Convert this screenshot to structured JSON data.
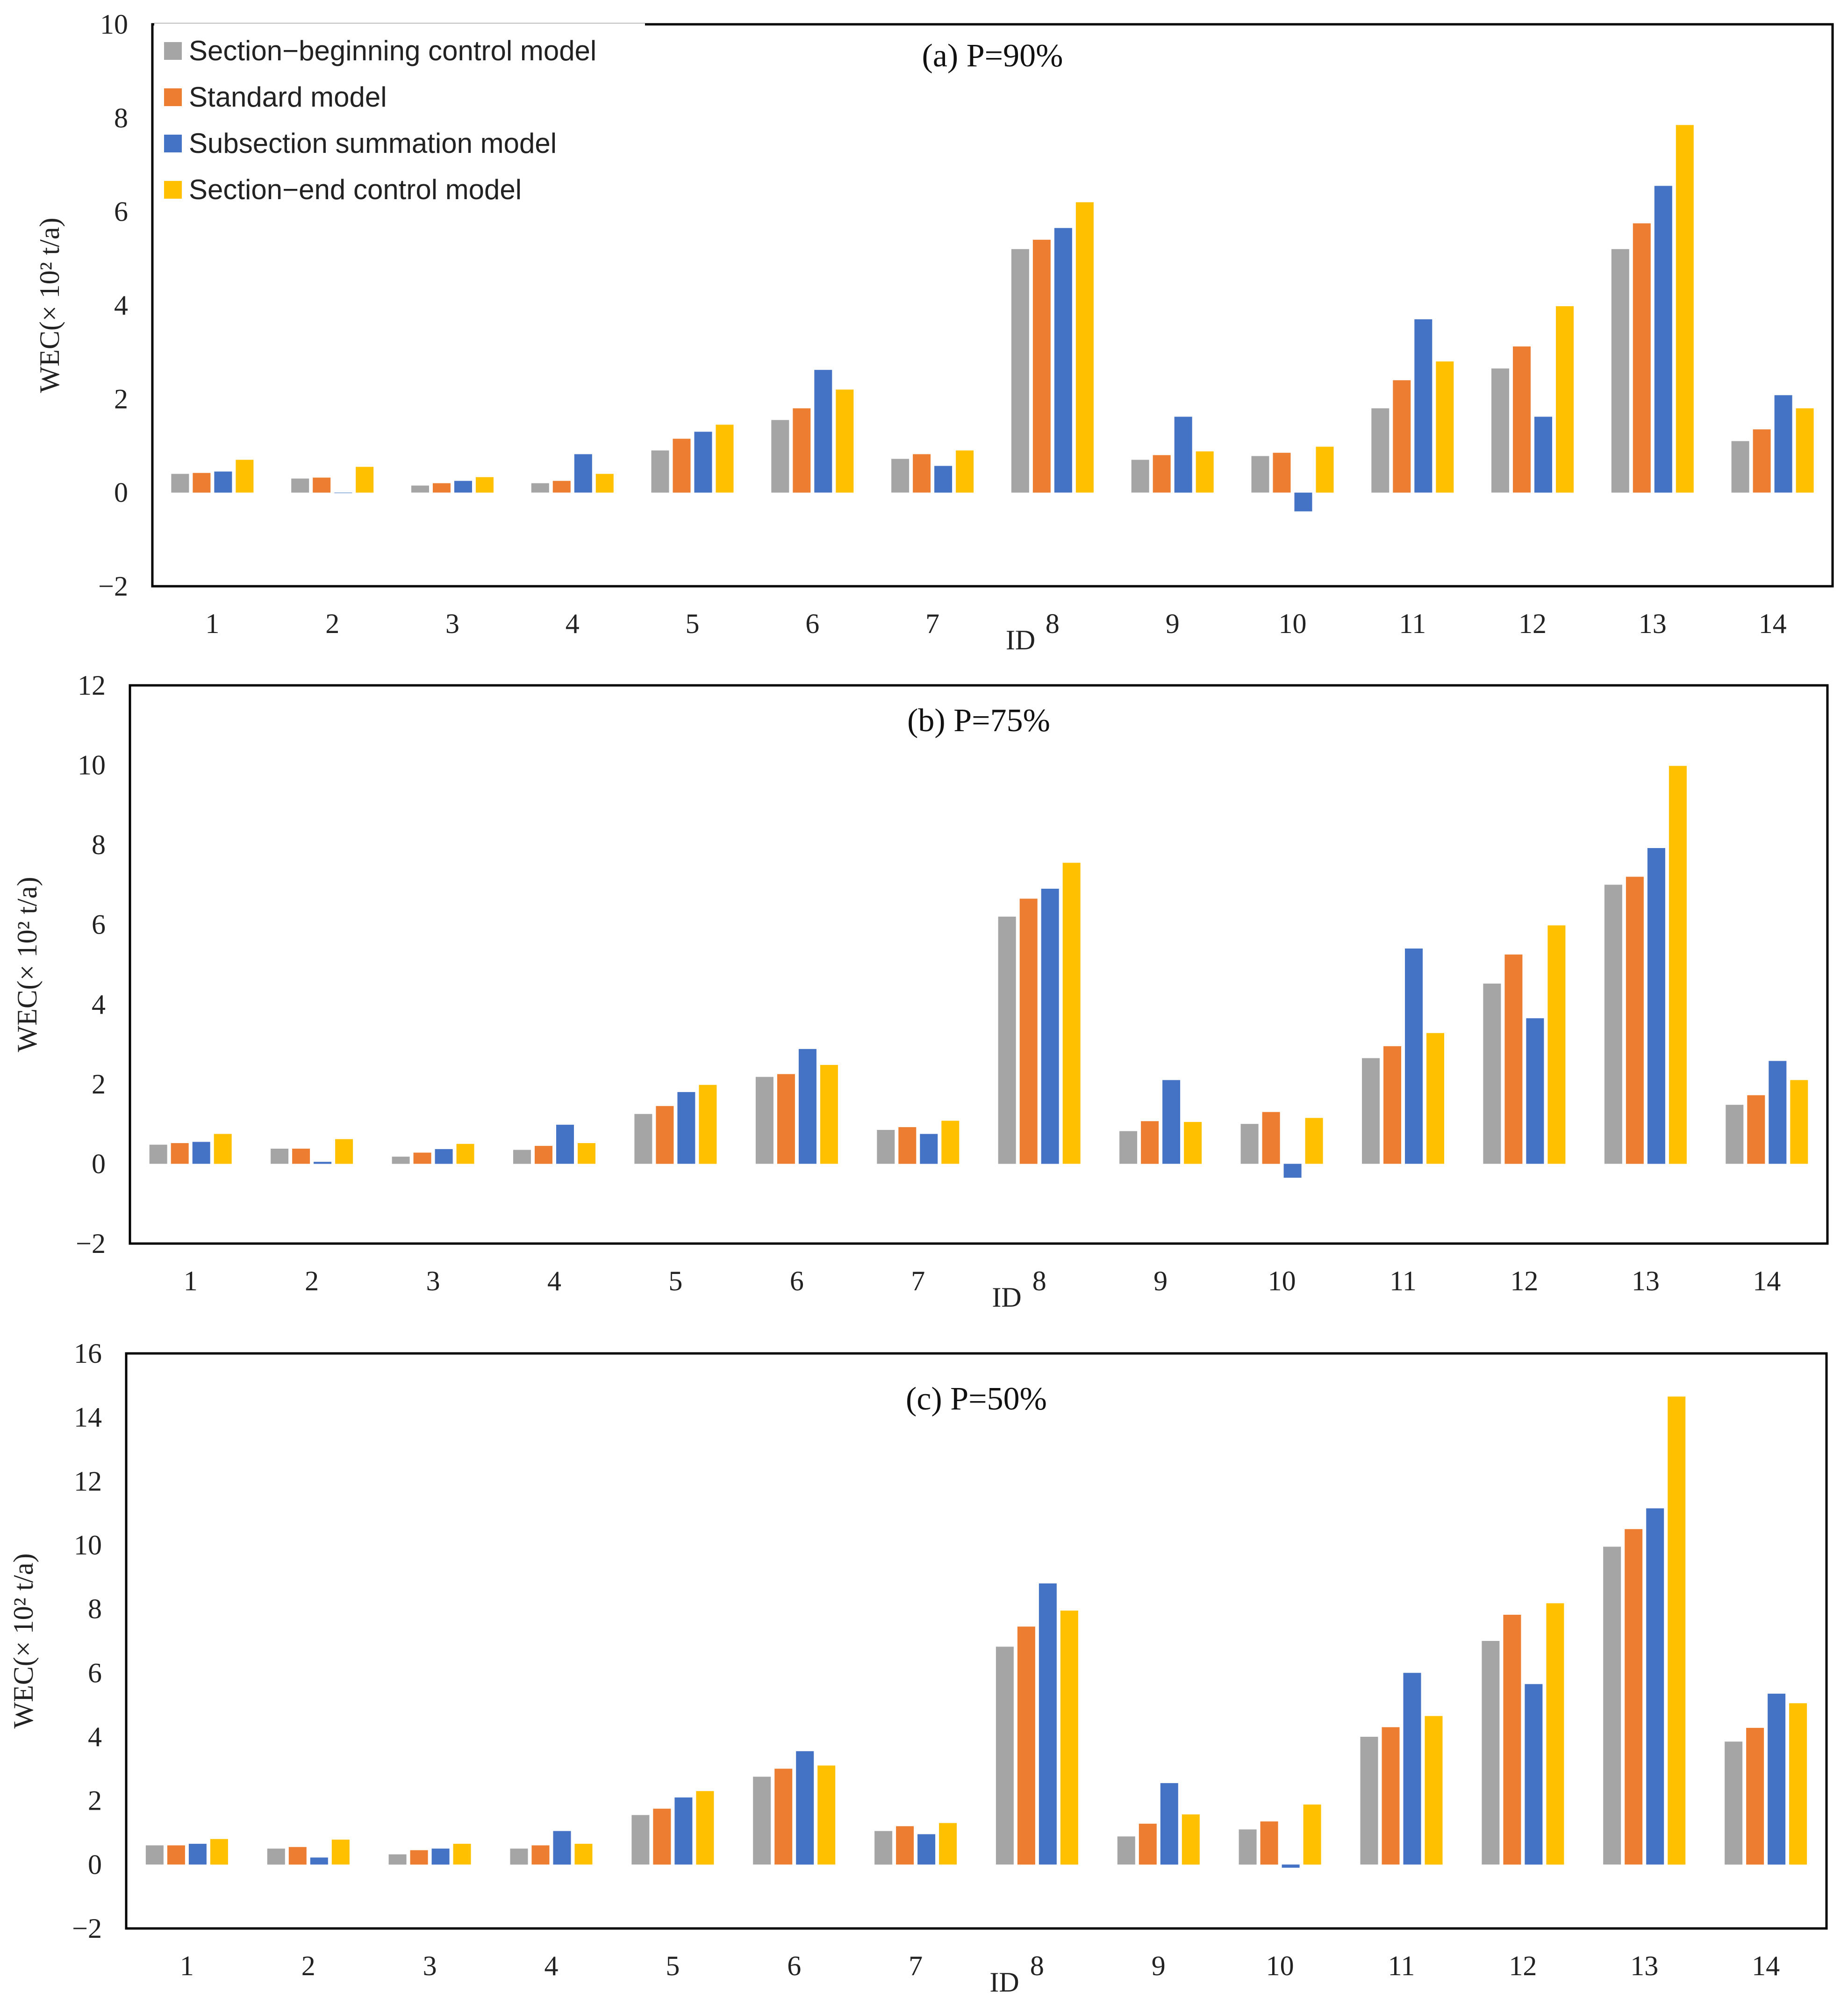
{
  "chart_data": {
    "type": "bar",
    "categories": [
      "1",
      "2",
      "3",
      "4",
      "5",
      "6",
      "7",
      "8",
      "9",
      "10",
      "11",
      "12",
      "13",
      "14"
    ],
    "series_names": [
      "Section−beginning control model",
      "Standard model",
      "Subsection summation model",
      "Section−end control model"
    ],
    "colors": [
      "#a5a5a5",
      "#ed7d31",
      "#4472c4",
      "#ffc000"
    ],
    "legend_position": "top-left",
    "panels": [
      {
        "title": "(a) P=90%",
        "xlabel": "ID",
        "ylabel": "WEC(× 10² t/a)",
        "ylim": [
          -2,
          10
        ],
        "yticks": [
          -2,
          0,
          2,
          4,
          6,
          8,
          10
        ],
        "ytick_labels": [
          "−2",
          "0",
          "2",
          "4",
          "6",
          "8",
          "10"
        ],
        "series": [
          {
            "name": "Section−beginning control model",
            "values": [
              0.4,
              0.3,
              0.15,
              0.2,
              0.9,
              1.55,
              0.72,
              5.2,
              0.7,
              0.78,
              1.8,
              2.65,
              5.2,
              1.1
            ]
          },
          {
            "name": "Standard model",
            "values": [
              0.42,
              0.32,
              0.2,
              0.25,
              1.15,
              1.8,
              0.82,
              5.4,
              0.8,
              0.85,
              2.4,
              3.12,
              5.75,
              1.35
            ]
          },
          {
            "name": "Subsection summation model",
            "values": [
              0.45,
              0.0,
              0.25,
              0.82,
              1.3,
              2.62,
              0.57,
              5.65,
              1.62,
              -0.4,
              3.7,
              1.62,
              6.55,
              2.08
            ]
          },
          {
            "name": "Section−end control model",
            "values": [
              0.7,
              0.55,
              0.33,
              0.4,
              1.45,
              2.2,
              0.9,
              6.2,
              0.88,
              0.98,
              2.8,
              3.98,
              7.85,
              1.8
            ]
          }
        ]
      },
      {
        "title": "(b) P=75%",
        "xlabel": "ID",
        "ylabel": "WEC(× 10² t/a)",
        "ylim": [
          -2,
          12
        ],
        "yticks": [
          -2,
          0,
          2,
          4,
          6,
          8,
          10,
          12
        ],
        "ytick_labels": [
          "−2",
          "0",
          "2",
          "4",
          "6",
          "8",
          "10",
          "12"
        ],
        "series": [
          {
            "name": "Section−beginning control model",
            "values": [
              0.48,
              0.38,
              0.18,
              0.35,
              1.25,
              2.18,
              0.85,
              6.2,
              0.82,
              1.0,
              2.65,
              4.52,
              7.0,
              1.48
            ]
          },
          {
            "name": "Standard model",
            "values": [
              0.52,
              0.38,
              0.28,
              0.45,
              1.45,
              2.25,
              0.92,
              6.65,
              1.07,
              1.3,
              2.95,
              5.25,
              7.2,
              1.72
            ]
          },
          {
            "name": "Subsection summation model",
            "values": [
              0.55,
              0.05,
              0.37,
              0.98,
              1.8,
              2.88,
              0.75,
              6.9,
              2.1,
              -0.35,
              5.4,
              3.65,
              7.92,
              2.58
            ]
          },
          {
            "name": "Section−end control model",
            "values": [
              0.75,
              0.62,
              0.5,
              0.52,
              1.98,
              2.48,
              1.08,
              7.55,
              1.05,
              1.15,
              3.28,
              5.98,
              9.98,
              2.1
            ]
          }
        ]
      },
      {
        "title": "(c) P=50%",
        "xlabel": "ID",
        "ylabel": "WEC(× 10² t/a)",
        "ylim": [
          -2,
          16
        ],
        "yticks": [
          -2,
          0,
          2,
          4,
          6,
          8,
          10,
          12,
          14,
          16
        ],
        "ytick_labels": [
          "−2",
          "0",
          "2",
          "4",
          "6",
          "8",
          "10",
          "12",
          "14",
          "16"
        ],
        "series": [
          {
            "name": "Section−beginning control model",
            "values": [
              0.6,
              0.5,
              0.32,
              0.5,
              1.55,
              2.75,
              1.05,
              6.82,
              0.88,
              1.1,
              4.0,
              7.0,
              9.95,
              3.85
            ]
          },
          {
            "name": "Standard model",
            "values": [
              0.6,
              0.55,
              0.45,
              0.6,
              1.75,
              3.0,
              1.2,
              7.45,
              1.28,
              1.35,
              4.3,
              7.82,
              10.5,
              4.28
            ]
          },
          {
            "name": "Subsection summation model",
            "values": [
              0.65,
              0.22,
              0.5,
              1.05,
              2.1,
              3.55,
              0.95,
              8.8,
              2.55,
              -0.1,
              6.0,
              5.65,
              11.15,
              5.35
            ]
          },
          {
            "name": "Section−end control model",
            "values": [
              0.8,
              0.78,
              0.65,
              0.65,
              2.3,
              3.1,
              1.3,
              7.95,
              1.57,
              1.88,
              4.65,
              8.18,
              14.65,
              5.05
            ]
          }
        ]
      }
    ]
  }
}
